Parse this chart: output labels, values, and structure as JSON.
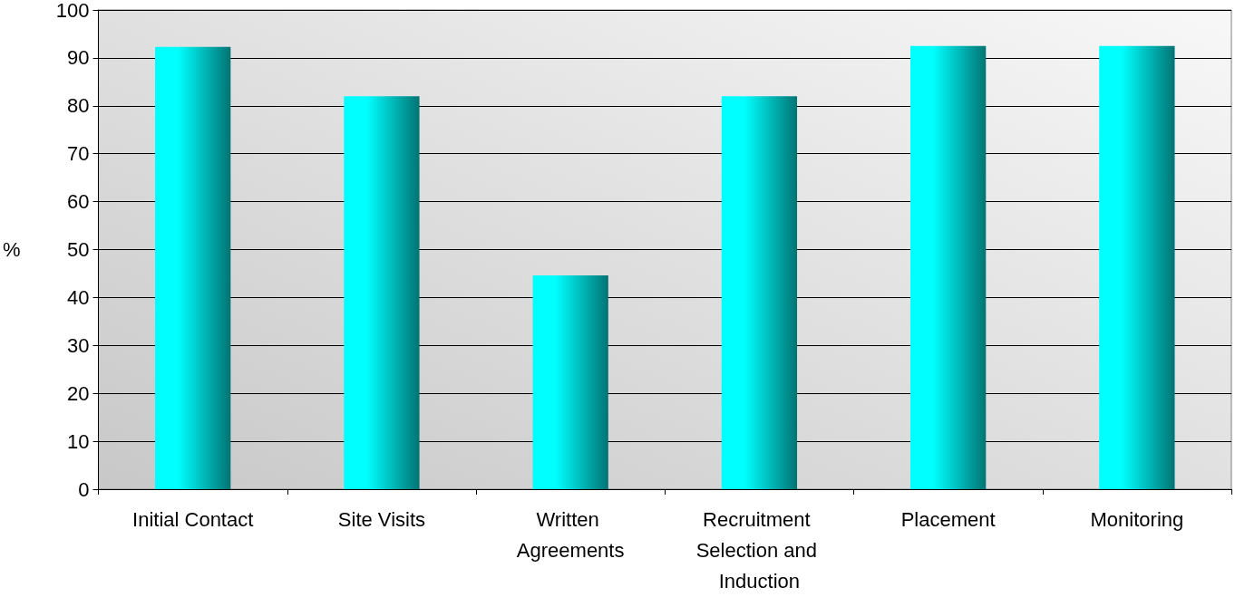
{
  "chart_data": {
    "type": "bar",
    "ylabel": "%",
    "categories": [
      "Initial Contact",
      "Site Visits",
      "Written Agreements",
      "Recruitment Selection and Induction",
      "Placement",
      "Monitoring"
    ],
    "values": [
      92.3,
      82,
      44.6,
      82,
      92.5,
      92.5
    ],
    "color": "#00ffff",
    "ylim": [
      0,
      100
    ],
    "yticks": [
      0,
      10,
      20,
      30,
      40,
      50,
      60,
      70,
      80,
      90,
      100
    ],
    "grid": "y"
  }
}
